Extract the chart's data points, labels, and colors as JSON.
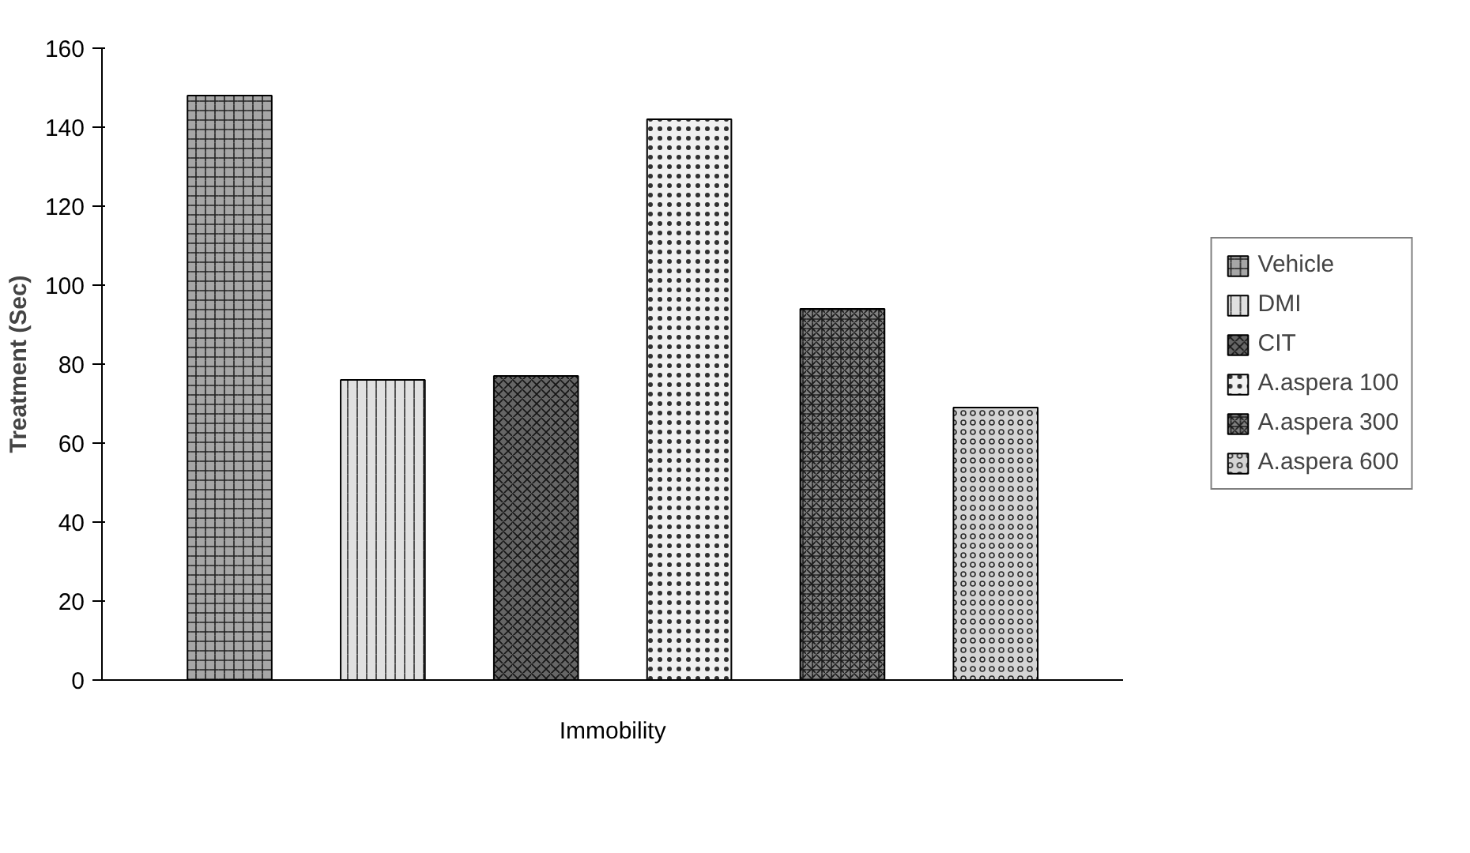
{
  "chart_data": {
    "type": "bar",
    "ylabel": "Treatment (Sec)",
    "categories": [
      "Immobility"
    ],
    "series": [
      {
        "name": "Vehicle",
        "color": "#a6a6a6",
        "values": [
          148
        ]
      },
      {
        "name": "DMI",
        "color": "#e0e0e0",
        "values": [
          76
        ]
      },
      {
        "name": "CIT",
        "color": "#666666",
        "values": [
          77
        ]
      },
      {
        "name": "A.aspera 100",
        "color": "#f0f0f0",
        "values": [
          142
        ]
      },
      {
        "name": "A.aspera 300",
        "color": "#808080",
        "values": [
          94
        ]
      },
      {
        "name": "A.aspera 600",
        "color": "#d4d4d4",
        "values": [
          69
        ]
      }
    ],
    "ylim": [
      0,
      160
    ],
    "yticks": [
      0,
      20,
      40,
      60,
      80,
      100,
      120,
      140,
      160
    ],
    "grid": false,
    "legend": "right"
  }
}
